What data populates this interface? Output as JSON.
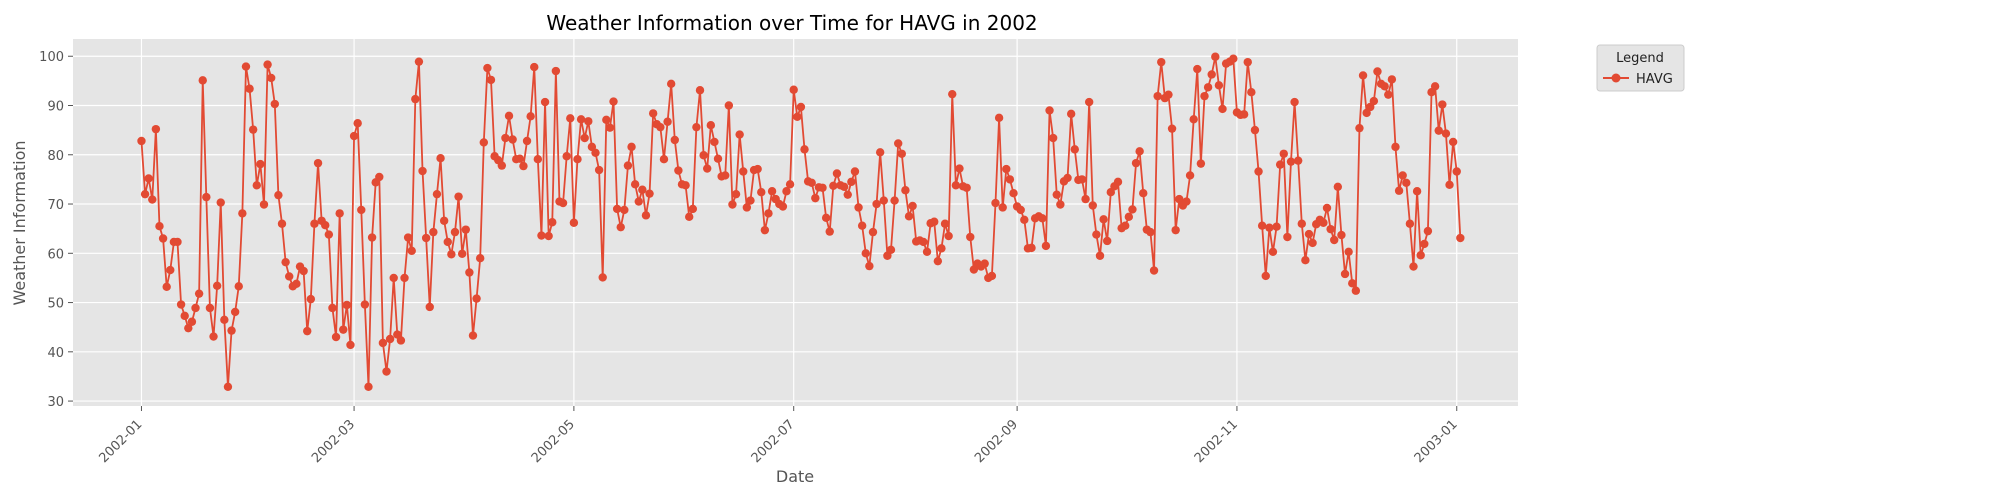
{
  "chart_data": {
    "type": "line",
    "title": "Weather Information over Time for HAVG in 2002",
    "xlabel": "Date",
    "ylabel": "Weather Information",
    "x_ticks": [
      "2002-01",
      "2002-03",
      "2002-05",
      "2002-07",
      "2002-09",
      "2002-11",
      "2003-01"
    ],
    "y_ticks": [
      "30",
      "40",
      "50",
      "60",
      "70",
      "80",
      "90",
      "100"
    ],
    "xlim": [
      "2001-12-13",
      "2003-01-18"
    ],
    "ylim": [
      29,
      103.5
    ],
    "grid": true,
    "legend": {
      "title": "Legend",
      "placement": "upper right, outside plot"
    },
    "colors": {
      "series": "#E24A33",
      "plot_background": "#E5E5E5",
      "grid": "#FFFFFF"
    },
    "series": [
      {
        "name": "HAVG",
        "x_start": "2002-01-01",
        "x_step_days": 1,
        "values": [
          82.8,
          72.0,
          75.2,
          70.9,
          85.2,
          65.5,
          63.0,
          53.2,
          56.6,
          62.3,
          62.3,
          49.6,
          47.3,
          44.8,
          46.1,
          48.9,
          51.8,
          95.1,
          71.4,
          48.9,
          43.1,
          53.4,
          70.3,
          46.5,
          32.9,
          44.3,
          48.1,
          53.3,
          68.1,
          97.9,
          93.4,
          85.1,
          73.8,
          78.1,
          69.9,
          98.3,
          95.6,
          90.3,
          71.8,
          66.0,
          58.2,
          55.3,
          53.3,
          53.8,
          57.3,
          56.4,
          44.2,
          50.7,
          66.0,
          78.3,
          66.6,
          65.7,
          63.8,
          48.9,
          43.0,
          68.1,
          44.5,
          49.5,
          41.4,
          83.8,
          86.4,
          68.8,
          49.6,
          32.9,
          63.2,
          74.4,
          75.5,
          41.8,
          36.0,
          42.6,
          55.0,
          43.5,
          42.3,
          55.0,
          63.2,
          60.5,
          91.3,
          98.9,
          76.7,
          63.1,
          49.1,
          64.3,
          72.0,
          79.3,
          66.6,
          62.3,
          59.8,
          64.3,
          71.5,
          59.9,
          64.8,
          56.1,
          43.3,
          50.8,
          59.0,
          82.5,
          97.6,
          95.2,
          79.7,
          78.9,
          77.8,
          83.4,
          87.9,
          83.1,
          79.1,
          79.2,
          77.7,
          82.8,
          87.8,
          97.8,
          79.1,
          63.6,
          90.7,
          63.5,
          66.3,
          97.0,
          70.5,
          70.2,
          79.7,
          87.4,
          66.2,
          79.1,
          87.2,
          83.4,
          86.8,
          81.6,
          80.4,
          76.9,
          55.1,
          87.1,
          85.5,
          90.8,
          69.0,
          65.3,
          68.8,
          77.8,
          81.6,
          74.0,
          70.5,
          72.9,
          67.7,
          72.1,
          88.4,
          86.2,
          85.6,
          79.1,
          86.7,
          94.4,
          83.0,
          76.8,
          74.0,
          73.8,
          67.4,
          69.0,
          85.6,
          93.1,
          79.9,
          77.2,
          86.0,
          82.6,
          79.2,
          75.6,
          75.8,
          90.0,
          69.9,
          72.0,
          84.1,
          76.6,
          69.3,
          70.7,
          76.9,
          77.1,
          72.4,
          64.7,
          68.1,
          72.6,
          71.0,
          70.0,
          69.5,
          72.6,
          74.0,
          93.2,
          87.7,
          89.7,
          81.1,
          74.6,
          74.3,
          71.2,
          73.4,
          73.3,
          67.2,
          64.4,
          73.7,
          76.2,
          73.8,
          73.5,
          71.9,
          74.5,
          76.6,
          69.3,
          65.6,
          60.0,
          57.4,
          64.3,
          70.0,
          80.5,
          70.7,
          59.5,
          60.7,
          70.7,
          82.3,
          80.2,
          72.8,
          67.5,
          69.6,
          62.4,
          62.6,
          62.3,
          60.3,
          66.1,
          66.4,
          58.4,
          61.0,
          66.0,
          63.5,
          92.3,
          73.8,
          77.2,
          73.6,
          73.3,
          63.3,
          56.7,
          57.9,
          57.3,
          57.9,
          55.0,
          55.4,
          70.2,
          87.5,
          69.3,
          77.1,
          75.0,
          72.2,
          69.5,
          68.8,
          66.8,
          61.0,
          61.1,
          67.1,
          67.5,
          67.1,
          61.5,
          89.0,
          83.4,
          71.9,
          69.9,
          74.6,
          75.3,
          88.3,
          81.1,
          74.9,
          75.0,
          71.0,
          90.7,
          69.7,
          63.8,
          59.5,
          66.9,
          62.5,
          72.4,
          73.6,
          74.5,
          65.1,
          65.6,
          67.4,
          68.9,
          78.3,
          80.7,
          72.2,
          64.8,
          64.3,
          56.5,
          91.9,
          98.8,
          91.5,
          92.2,
          85.3,
          64.7,
          71.0,
          69.7,
          70.5,
          75.8,
          87.2,
          97.4,
          78.2,
          91.9,
          93.7,
          96.3,
          99.9,
          94.1,
          89.3,
          98.5,
          98.9,
          99.5,
          88.6,
          88.1,
          88.2,
          98.8,
          92.7,
          85.0,
          76.6,
          65.6,
          55.4,
          65.2,
          60.3,
          65.4,
          78.0,
          80.2,
          63.3,
          78.6,
          90.7,
          78.8,
          66.0,
          58.6,
          63.9,
          62.1,
          65.9,
          66.8,
          66.2,
          69.2,
          64.9,
          62.7,
          73.5,
          63.7,
          55.8,
          60.3,
          53.9,
          52.4,
          85.4,
          96.1,
          88.5,
          89.7,
          90.9,
          96.9,
          94.4,
          93.9,
          92.2,
          95.3,
          81.6,
          72.7,
          75.8,
          74.3,
          66.0,
          57.3,
          72.6,
          59.6,
          61.9,
          64.5,
          92.7,
          93.9,
          84.9,
          90.2,
          84.3,
          73.9,
          82.6,
          76.6,
          63.1
        ]
      }
    ]
  }
}
